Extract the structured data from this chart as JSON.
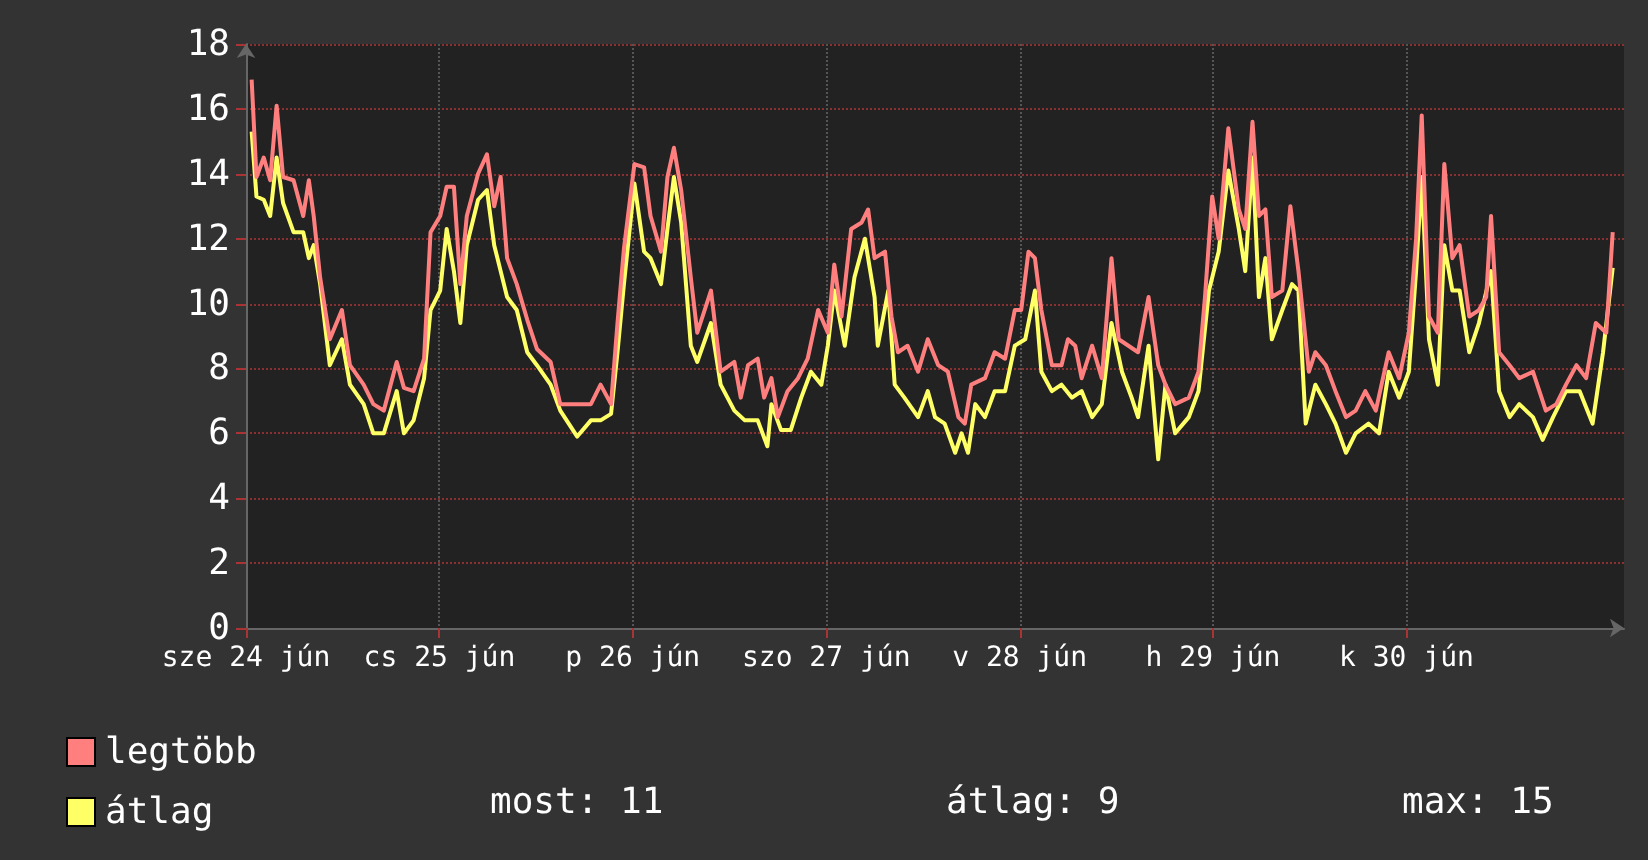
{
  "chart_data": {
    "type": "line",
    "xlim": [
      "--06-24T00:00",
      "--07-01T03:00"
    ],
    "xticks": [
      {
        "value": "--06-24",
        "label": "sze 24 jún"
      },
      {
        "value": "--06-25",
        "label": "cs 25 jún"
      },
      {
        "value": "--06-26",
        "label": "p 26 jún"
      },
      {
        "value": "--06-27",
        "label": "szo 27 jún"
      },
      {
        "value": "--06-28",
        "label": "v 28 jún"
      },
      {
        "value": "--06-29",
        "label": "h 29 jún"
      },
      {
        "value": "--06-30",
        "label": "k 30 jún"
      }
    ],
    "ylim": [
      0,
      18
    ],
    "yticks": [
      0,
      2,
      4,
      6,
      8,
      10,
      12,
      14,
      16,
      18
    ],
    "grid": true,
    "legend": "bottom left",
    "annotations": [
      "most: 11",
      "átlag: 9",
      "max: 15"
    ],
    "series": [
      {
        "name": "legtöbb",
        "color": "#ff7f7f",
        "x": [
          "--06-24T00:42",
          "--06-24T01:18",
          "--06-24T02:12",
          "--06-24T03:00",
          "--06-24T03:48",
          "--06-24T04:36",
          "--06-24T05:54",
          "--06-24T07:06",
          "--06-24T07:48",
          "--06-24T08:24",
          "--06-24T09:12",
          "--06-24T10:24",
          "--06-24T11:54",
          "--06-24T12:54",
          "--06-24T14:36",
          "--06-24T15:48",
          "--06-24T17:06",
          "--06-24T18:42",
          "--06-24T19:36",
          "--06-24T20:48",
          "--06-24T22:06",
          "--06-24T22:54",
          "--06-25T00:06",
          "--06-25T00:54",
          "--06-25T01:48",
          "--06-25T02:36",
          "--06-25T03:24",
          "--06-25T04:48",
          "--06-25T05:54",
          "--06-25T06:48",
          "--06-25T07:36",
          "--06-25T08:24",
          "--06-25T09:36",
          "--06-25T10:54",
          "--06-25T12:06",
          "--06-25T13:48",
          "--06-25T15:00",
          "--06-25T17:06",
          "--06-25T18:48",
          "--06-25T20:00",
          "--06-25T21:18",
          "--06-25T22:06",
          "--06-25T22:54",
          "--06-26T00:12",
          "--06-26T01:24",
          "--06-26T02:12",
          "--06-26T03:30",
          "--06-26T04:18",
          "--06-26T05:06",
          "--06-26T06:00",
          "--06-26T07:12",
          "--06-26T08:00",
          "--06-26T09:42",
          "--06-26T10:54",
          "--06-26T12:36",
          "--06-26T13:24",
          "--06-26T14:18",
          "--06-26T15:30",
          "--06-26T16:18",
          "--06-26T17:12",
          "--06-26T18:00",
          "--06-26T19:12",
          "--06-26T20:30",
          "--06-26T21:42",
          "--06-26T23:00",
          "--06-27T00:12",
          "--06-27T01:00",
          "--06-27T01:54",
          "--06-27T03:06",
          "--06-27T04:24",
          "--06-27T05:12",
          "--06-27T06:00",
          "--06-27T07:18",
          "--06-27T08:06",
          "--06-27T08:54",
          "--06-27T10:06",
          "--06-27T11:24",
          "--06-27T12:36",
          "--06-27T13:54",
          "--06-27T15:06",
          "--06-27T16:24",
          "--06-27T17:12",
          "--06-27T18:00",
          "--06-27T19:42",
          "--06-27T20:54",
          "--06-27T22:12",
          "--06-27T23:24",
          "--06-28T00:12",
          "--06-28T01:06",
          "--06-28T01:54",
          "--06-28T02:42",
          "--06-28T04:00",
          "--06-28T05:12",
          "--06-28T06:00",
          "--06-28T06:54",
          "--06-28T07:42",
          "--06-28T09:00",
          "--06-28T10:12",
          "--06-28T11:24",
          "--06-28T12:18",
          "--06-28T13:30",
          "--06-28T14:42",
          "--06-28T16:00",
          "--06-28T17:12",
          "--06-28T18:06",
          "--06-28T19:18",
          "--06-28T21:00",
          "--06-28T22:12",
          "--06-28T23:00",
          "--06-28T23:54",
          "--06-29T00:42",
          "--06-29T01:54",
          "--06-29T03:12",
          "--06-29T04:00",
          "--06-29T04:54",
          "--06-29T05:42",
          "--06-29T06:30",
          "--06-29T07:18",
          "--06-29T08:36",
          "--06-29T09:36",
          "--06-29T10:36",
          "--06-29T11:54",
          "--06-29T12:42",
          "--06-29T14:00",
          "--06-29T15:12",
          "--06-29T16:30",
          "--06-29T17:42",
          "--06-29T18:54",
          "--06-29T20:12",
          "--06-29T21:48",
          "--06-29T23:06",
          "--06-30T00:18",
          "--06-30T01:12",
          "--06-30T01:54",
          "--06-30T02:48",
          "--06-30T03:54",
          "--06-30T04:42",
          "--06-30T05:42",
          "--06-30T06:36",
          "--06-30T07:48",
          "--06-30T09:00",
          "--06-30T09:54",
          "--06-30T10:30",
          "--06-30T11:30",
          "--06-30T12:48",
          "--06-30T14:00",
          "--06-30T15:42",
          "--06-30T17:18",
          "--06-30T18:36",
          "--06-30T19:48",
          "--06-30T21:06",
          "--06-30T22:18",
          "--06-30T23:30",
          "--07-01T00:48",
          "--07-01T01:36"
        ],
        "values": [
          16.9,
          13.9,
          14.5,
          13.8,
          16.1,
          13.9,
          13.8,
          12.7,
          13.8,
          12.7,
          10.8,
          8.9,
          9.8,
          8.1,
          7.5,
          6.9,
          6.7,
          8.2,
          7.4,
          7.3,
          8.3,
          12.2,
          12.7,
          13.6,
          13.6,
          10.6,
          12.7,
          14.0,
          14.6,
          13.0,
          13.9,
          11.4,
          10.6,
          9.5,
          8.6,
          8.2,
          6.9,
          6.9,
          6.9,
          7.5,
          6.9,
          9.4,
          11.7,
          14.3,
          14.2,
          12.7,
          11.6,
          13.9,
          14.8,
          13.5,
          10.8,
          9.1,
          10.4,
          7.9,
          8.2,
          7.1,
          8.1,
          8.3,
          7.1,
          7.7,
          6.5,
          7.3,
          7.7,
          8.3,
          9.8,
          9.1,
          11.2,
          9.6,
          12.3,
          12.5,
          12.9,
          11.4,
          11.6,
          9.6,
          8.5,
          8.7,
          7.9,
          8.9,
          8.1,
          7.9,
          6.5,
          6.3,
          7.5,
          7.7,
          8.5,
          8.3,
          9.8,
          9.8,
          11.6,
          11.4,
          9.8,
          8.1,
          8.1,
          8.9,
          8.7,
          7.7,
          8.7,
          7.7,
          11.4,
          8.9,
          8.7,
          8.5,
          10.2,
          8.1,
          7.5,
          6.9,
          7.1,
          7.9,
          10.2,
          13.3,
          12.0,
          15.4,
          12.9,
          12.3,
          15.6,
          12.7,
          12.9,
          10.2,
          10.4,
          13.0,
          11.0,
          7.9,
          8.5,
          8.1,
          7.3,
          6.5,
          6.7,
          7.3,
          6.7,
          8.5,
          7.7,
          9.1,
          12.0,
          15.8,
          9.6,
          9.1,
          14.3,
          11.4,
          11.8,
          9.6,
          9.8,
          10.2,
          12.7,
          8.5,
          8.1,
          7.7,
          7.9,
          6.7,
          6.9,
          7.5,
          8.1,
          7.7,
          9.4,
          9.1,
          12.2
        ]
      },
      {
        "name": "átlag",
        "color": "#ffff66",
        "x": [
          "--06-24T00:42",
          "--06-24T01:18",
          "--06-24T02:12",
          "--06-24T03:00",
          "--06-24T03:48",
          "--06-24T04:36",
          "--06-24T05:54",
          "--06-24T07:06",
          "--06-24T07:48",
          "--06-24T08:24",
          "--06-24T09:12",
          "--06-24T10:24",
          "--06-24T11:54",
          "--06-24T12:54",
          "--06-24T14:36",
          "--06-24T15:48",
          "--06-24T17:06",
          "--06-24T18:42",
          "--06-24T19:36",
          "--06-24T20:48",
          "--06-24T22:06",
          "--06-24T22:54",
          "--06-25T00:06",
          "--06-25T00:54",
          "--06-25T01:48",
          "--06-25T02:36",
          "--06-25T03:24",
          "--06-25T04:48",
          "--06-25T05:54",
          "--06-25T06:48",
          "--06-25T07:36",
          "--06-25T08:24",
          "--06-25T09:36",
          "--06-25T10:54",
          "--06-25T12:06",
          "--06-25T13:48",
          "--06-25T15:00",
          "--06-25T17:06",
          "--06-25T18:48",
          "--06-25T20:00",
          "--06-25T21:18",
          "--06-25T22:06",
          "--06-25T22:54",
          "--06-26T00:12",
          "--06-26T01:24",
          "--06-26T02:12",
          "--06-26T03:30",
          "--06-26T04:18",
          "--06-26T05:06",
          "--06-26T06:00",
          "--06-26T07:12",
          "--06-26T08:00",
          "--06-26T09:42",
          "--06-26T10:54",
          "--06-26T12:36",
          "--06-26T13:54",
          "--06-26T15:30",
          "--06-26T16:42",
          "--06-26T17:12",
          "--06-26T18:24",
          "--06-26T19:36",
          "--06-26T20:54",
          "--06-26T22:06",
          "--06-26T23:24",
          "--06-27T00:12",
          "--06-27T01:00",
          "--06-27T02:18",
          "--06-27T03:30",
          "--06-27T04:48",
          "--06-27T06:00",
          "--06-27T06:24",
          "--06-27T07:42",
          "--06-27T08:30",
          "--06-27T09:42",
          "--06-27T11:24",
          "--06-27T12:36",
          "--06-27T13:30",
          "--06-27T14:42",
          "--06-27T16:00",
          "--06-27T16:48",
          "--06-27T17:36",
          "--06-27T18:30",
          "--06-27T19:42",
          "--06-27T20:54",
          "--06-27T22:12",
          "--06-27T23:24",
          "--06-28T00:42",
          "--06-28T01:54",
          "--06-28T02:42",
          "--06-28T04:00",
          "--06-28T05:12",
          "--06-28T06:30",
          "--06-28T07:42",
          "--06-28T09:00",
          "--06-28T10:12",
          "--06-28T11:24",
          "--06-28T12:42",
          "--06-28T13:54",
          "--06-28T14:42",
          "--06-28T16:00",
          "--06-28T17:12",
          "--06-28T18:06",
          "--06-28T19:18",
          "--06-28T21:00",
          "--06-28T22:12",
          "--06-28T23:30",
          "--06-29T00:42",
          "--06-29T01:54",
          "--06-29T03:12",
          "--06-29T04:00",
          "--06-29T04:54",
          "--06-29T05:42",
          "--06-29T06:30",
          "--06-29T07:18",
          "--06-29T08:36",
          "--06-29T09:48",
          "--06-29T10:36",
          "--06-29T11:30",
          "--06-29T12:42",
          "--06-29T14:00",
          "--06-29T15:12",
          "--06-29T16:30",
          "--06-29T17:42",
          "--06-29T19:18",
          "--06-29T20:36",
          "--06-29T21:48",
          "--06-29T23:06",
          "--06-30T00:18",
          "--06-30T01:12",
          "--06-30T01:54",
          "--06-30T02:48",
          "--06-30T03:54",
          "--06-30T04:42",
          "--06-30T05:42",
          "--06-30T06:36",
          "--06-30T07:48",
          "--06-30T09:00",
          "--06-30T10:30",
          "--06-30T11:30",
          "--06-30T12:48",
          "--06-30T14:00",
          "--06-30T15:42",
          "--06-30T16:54",
          "--06-30T18:12",
          "--06-30T19:48",
          "--06-30T21:30",
          "--06-30T23:06",
          "--07-01T00:24",
          "--07-01T01:36"
        ],
        "values": [
          15.3,
          13.3,
          13.2,
          12.7,
          14.5,
          13.1,
          12.2,
          12.2,
          11.4,
          11.8,
          10.6,
          8.1,
          8.9,
          7.5,
          6.9,
          6.0,
          6.0,
          7.3,
          6.0,
          6.4,
          7.7,
          9.8,
          10.4,
          12.3,
          11.0,
          9.4,
          11.8,
          13.2,
          13.5,
          11.8,
          11.0,
          10.2,
          9.8,
          8.5,
          8.1,
          7.5,
          6.7,
          5.9,
          6.4,
          6.4,
          6.6,
          8.5,
          10.6,
          13.7,
          11.6,
          11.4,
          10.6,
          12.3,
          13.9,
          12.5,
          8.7,
          8.2,
          9.4,
          7.5,
          6.7,
          6.4,
          6.4,
          5.6,
          6.9,
          6.1,
          6.1,
          7.1,
          7.9,
          7.5,
          8.7,
          10.4,
          8.7,
          10.8,
          12.0,
          10.2,
          8.7,
          10.4,
          7.5,
          7.1,
          6.5,
          7.3,
          6.5,
          6.3,
          5.4,
          6.0,
          5.4,
          6.9,
          6.5,
          7.3,
          7.3,
          8.7,
          8.9,
          10.4,
          7.9,
          7.3,
          7.5,
          7.1,
          7.3,
          6.5,
          6.9,
          9.4,
          7.9,
          7.1,
          6.5,
          8.7,
          5.2,
          7.5,
          6.0,
          6.5,
          7.3,
          10.4,
          11.6,
          14.1,
          12.3,
          11.0,
          14.5,
          10.2,
          11.4,
          8.9,
          9.8,
          10.6,
          10.4,
          6.3,
          7.5,
          6.9,
          6.3,
          5.4,
          6.0,
          6.3,
          6.0,
          7.9,
          7.1,
          7.9,
          11.0,
          13.9,
          8.9,
          7.5,
          11.8,
          10.4,
          10.4,
          8.5,
          9.4,
          11.0,
          7.3,
          6.5,
          6.9,
          6.5,
          5.8,
          6.5,
          7.3,
          7.3,
          6.3,
          8.5,
          11.1
        ]
      }
    ]
  }
}
